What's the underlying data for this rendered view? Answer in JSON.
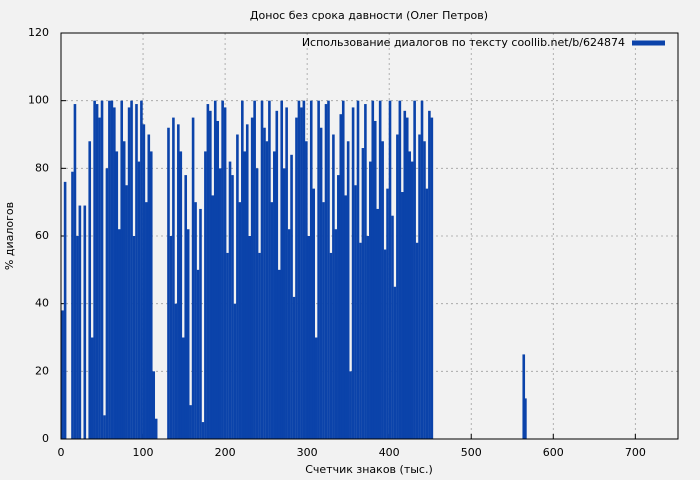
{
  "chart_data": {
    "type": "bar",
    "title": "Донос без срока давности (Олег Петров)",
    "xlabel": "Счетчик знаков (тыс.)",
    "ylabel": "% диалогов",
    "legend": "top right",
    "grid": true,
    "series": [
      {
        "name": "Использование диалогов по тексту coollib.net/b/624874",
        "color": "#0b43aa",
        "x": [
          2,
          5,
          8,
          11,
          14,
          17,
          20,
          23,
          26,
          29,
          32,
          35,
          38,
          41,
          44,
          47,
          50,
          53,
          56,
          59,
          62,
          65,
          68,
          71,
          74,
          77,
          80,
          83,
          86,
          89,
          92,
          95,
          98,
          101,
          104,
          107,
          110,
          113,
          116,
          119,
          122,
          125,
          128,
          131,
          134,
          137,
          140,
          143,
          146,
          149,
          152,
          155,
          158,
          161,
          164,
          167,
          170,
          173,
          176,
          179,
          182,
          185,
          188,
          191,
          194,
          197,
          200,
          203,
          206,
          209,
          212,
          215,
          218,
          221,
          224,
          227,
          230,
          233,
          236,
          239,
          242,
          245,
          248,
          251,
          254,
          257,
          260,
          263,
          266,
          269,
          272,
          275,
          278,
          281,
          284,
          287,
          290,
          293,
          296,
          299,
          302,
          305,
          308,
          311,
          314,
          317,
          320,
          323,
          326,
          329,
          332,
          335,
          338,
          341,
          344,
          347,
          350,
          353,
          356,
          359,
          362,
          365,
          368,
          371,
          374,
          377,
          380,
          383,
          386,
          389,
          392,
          395,
          398,
          401,
          404,
          407,
          410,
          413,
          416,
          419,
          422,
          425,
          428,
          431,
          434,
          437,
          440,
          443,
          446,
          449,
          452,
          564,
          566
        ],
        "values": [
          38,
          76,
          0,
          0,
          79,
          99,
          60,
          69,
          0,
          69,
          0,
          88,
          30,
          100,
          99,
          95,
          100,
          7,
          80,
          100,
          100,
          98,
          85,
          62,
          100,
          88,
          75,
          98,
          100,
          60,
          99,
          82,
          100,
          93,
          70,
          90,
          85,
          20,
          6,
          0,
          0,
          0,
          0,
          92,
          60,
          95,
          40,
          93,
          85,
          30,
          78,
          62,
          10,
          95,
          70,
          50,
          68,
          5,
          85,
          99,
          97,
          72,
          100,
          94,
          80,
          100,
          98,
          55,
          82,
          78,
          40,
          90,
          70,
          100,
          85,
          93,
          60,
          95,
          100,
          80,
          55,
          100,
          92,
          88,
          100,
          70,
          85,
          97,
          50,
          100,
          80,
          98,
          62,
          84,
          42,
          95,
          100,
          98,
          100,
          88,
          60,
          100,
          74,
          30,
          100,
          92,
          70,
          99,
          100,
          55,
          90,
          62,
          78,
          96,
          100,
          72,
          88,
          20,
          98,
          75,
          100,
          58,
          86,
          99,
          60,
          82,
          100,
          94,
          68,
          100,
          88,
          56,
          74,
          100,
          66,
          45,
          90,
          100,
          73,
          97,
          95,
          85,
          82,
          100,
          58,
          90,
          100,
          88,
          74,
          97,
          95,
          25,
          12
        ]
      }
    ],
    "xlim": [
      0,
      752
    ],
    "xticks": [
      0,
      100,
      200,
      300,
      400,
      500,
      600,
      700
    ],
    "ylim": [
      0,
      120
    ],
    "yticks": [
      0,
      20,
      40,
      60,
      80,
      100,
      120
    ]
  }
}
